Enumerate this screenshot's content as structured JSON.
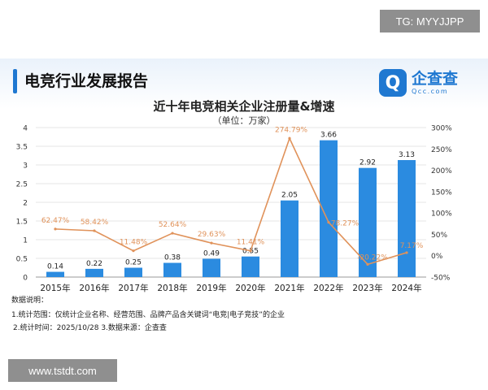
{
  "watermarks": {
    "top": "TG: MYYJJPP",
    "bottom": "www.tstdt.com"
  },
  "header": {
    "title": "电竞行业发展报告",
    "logo_name": "企查查",
    "logo_sub": "Qcc.com",
    "logo_icon": "qcc-logo-icon"
  },
  "colors": {
    "bar": "#2b8be0",
    "line": "#e0925a",
    "accent": "#1f78d1"
  },
  "chart_data": {
    "type": "bar",
    "title": "近十年电竞相关企业注册量&增速",
    "subtitle": "（单位：万家）",
    "categories": [
      "2015年",
      "2016年",
      "2017年",
      "2018年",
      "2019年",
      "2020年",
      "2021年",
      "2022年",
      "2023年",
      "2024年"
    ],
    "series": [
      {
        "type": "bar",
        "values": [
          0.14,
          0.22,
          0.25,
          0.38,
          0.49,
          0.55,
          2.05,
          3.66,
          2.92,
          3.13
        ],
        "labels": [
          "0.14",
          "0.22",
          "0.25",
          "0.38",
          "0.49",
          "0.55",
          "2.05",
          "3.66",
          "2.92",
          "3.13"
        ]
      },
      {
        "type": "line",
        "axis": "right",
        "values": [
          62.47,
          58.42,
          11.48,
          52.64,
          29.63,
          11.41,
          274.79,
          78.27,
          -20.22,
          7.17
        ],
        "labels": [
          "62.47%",
          "58.42%",
          "11.48%",
          "52.64%",
          "29.63%",
          "11.41%",
          "274.79%",
          "78.27%",
          "-20.22%",
          "7.17%"
        ]
      }
    ],
    "ylim": [
      0,
      4
    ],
    "yticks": [
      "0",
      "0.5",
      "1",
      "1.5",
      "2",
      "2.5",
      "3",
      "3.5",
      "4"
    ],
    "ylim_right": [
      -50,
      300
    ],
    "yticks_right": [
      "-50%",
      "0%",
      "50%",
      "100%",
      "150%",
      "200%",
      "250%",
      "300%"
    ],
    "grid": true
  },
  "notes": {
    "heading": "数据说明：",
    "line1": "1.统计范围：仅统计企业名称、经营范围、品牌产品含关键词“电竞|电子竞技”的企业",
    "line2": "2.统计时间：2025/10/28 3.数据来源：企查查"
  }
}
